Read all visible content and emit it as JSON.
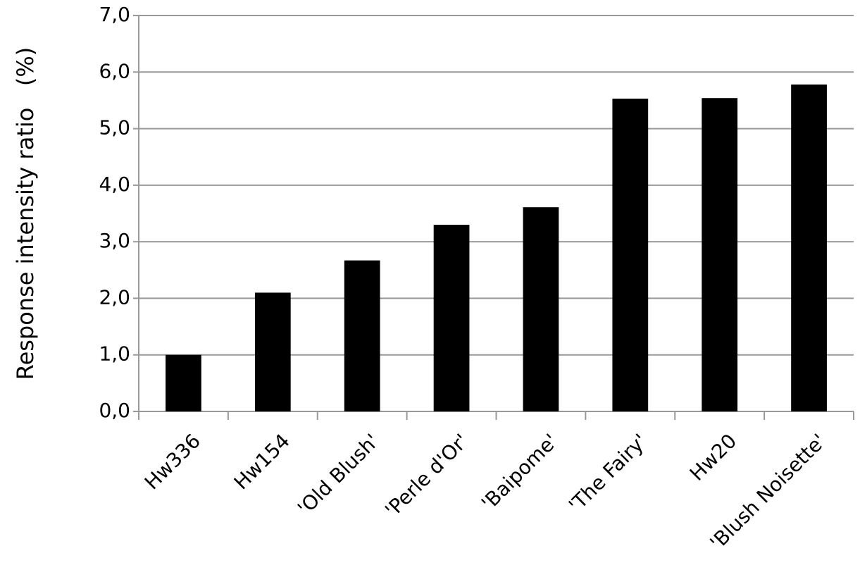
{
  "chart_data": {
    "type": "bar",
    "y_label": "Response intensity ratio   (%)",
    "categories": [
      "Hw336",
      "Hw154",
      "'Old Blush'",
      "'Perle d'Or'",
      "'Baipome'",
      "'The Fairy'",
      "Hw20",
      "'Blush Noisette'"
    ],
    "values": [
      1.0,
      2.1,
      2.67,
      3.3,
      3.61,
      5.53,
      5.54,
      5.78
    ],
    "color": "#000000",
    "ylim": [
      0,
      7
    ],
    "yticks": [
      {
        "value": 0,
        "label": "0,0"
      },
      {
        "value": 1,
        "label": "1,0"
      },
      {
        "value": 2,
        "label": "2,0"
      },
      {
        "value": 3,
        "label": "3,0"
      },
      {
        "value": 4,
        "label": "4,0"
      },
      {
        "value": 5,
        "label": "5,0"
      },
      {
        "value": 6,
        "label": "6,0"
      },
      {
        "value": 7,
        "label": "7,0"
      }
    ],
    "grid": true
  }
}
